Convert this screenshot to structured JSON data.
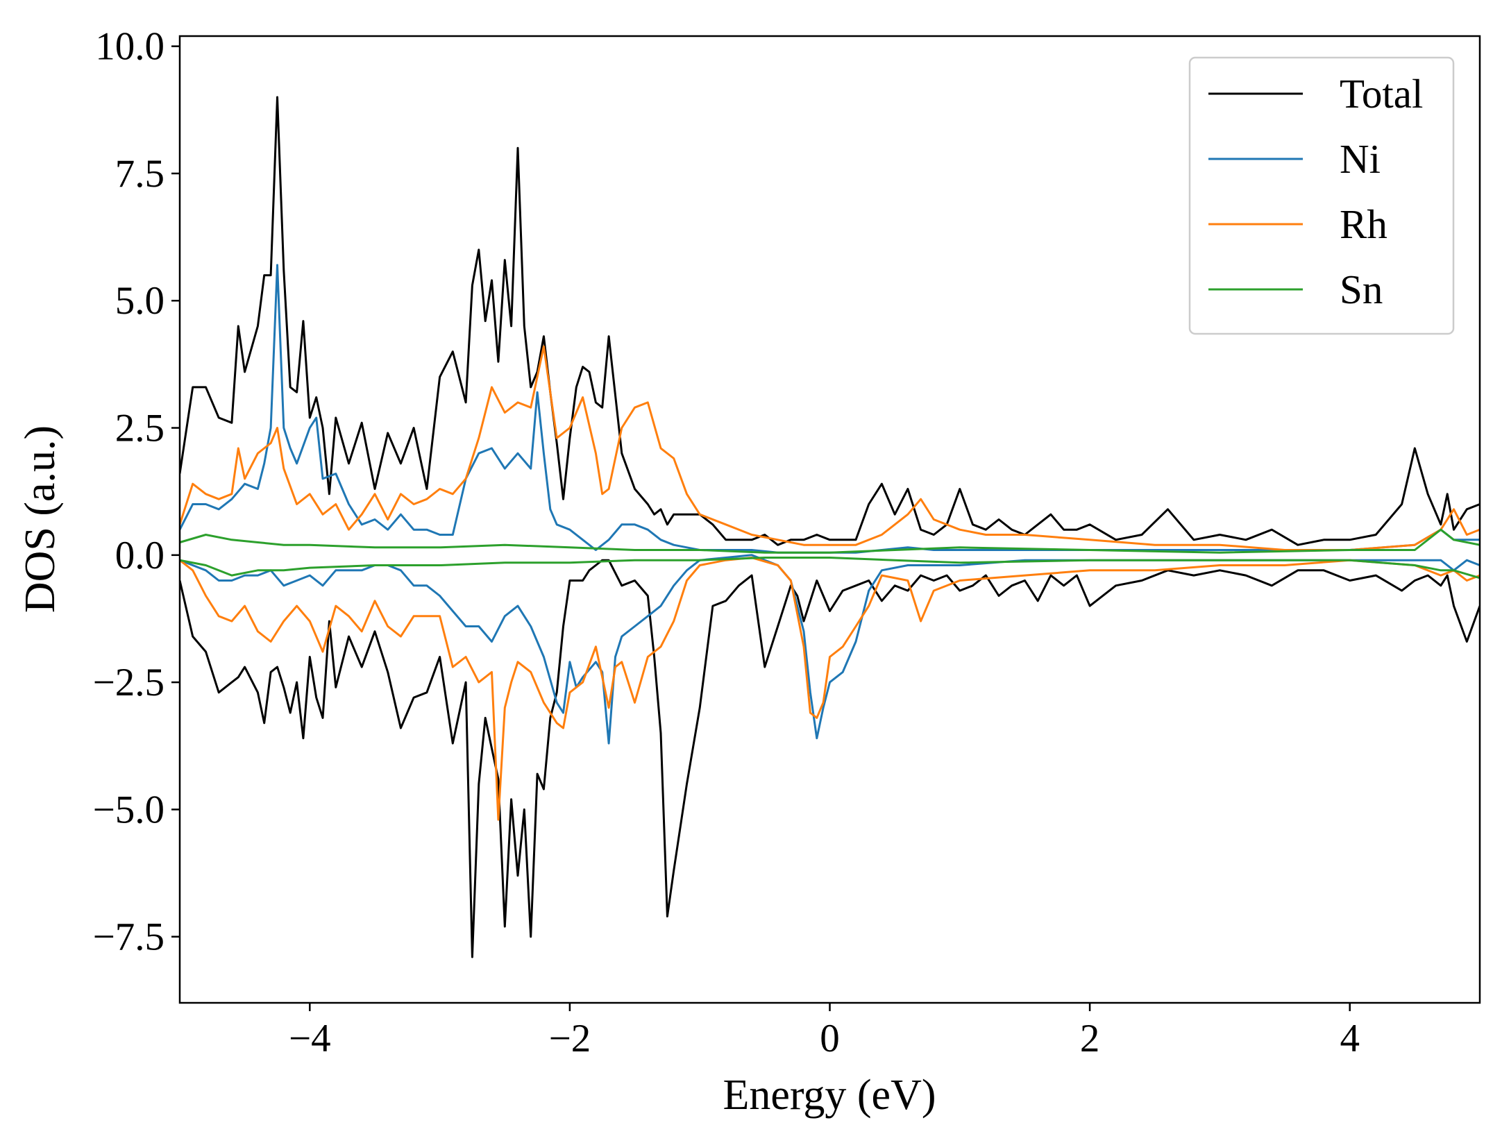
{
  "chart_data": {
    "type": "line",
    "title": "",
    "xlabel": "Energy (eV)",
    "ylabel": "DOS (a.u.)",
    "xlim": [
      -5,
      5
    ],
    "ylim": [
      -8.8,
      10.2
    ],
    "xticks": [
      -4,
      -2,
      0,
      2,
      4
    ],
    "xtick_labels": [
      "−4",
      "−2",
      "0",
      "2",
      "4"
    ],
    "yticks": [
      -7.5,
      -5.0,
      -2.5,
      0.0,
      2.5,
      5.0,
      7.5,
      10.0
    ],
    "ytick_labels": [
      "−7.5",
      "−5.0",
      "−2.5",
      "0.0",
      "2.5",
      "5.0",
      "7.5",
      "10.0"
    ],
    "grid": false,
    "legend_position": "top-right",
    "series": [
      {
        "name": "Total",
        "color": "#000000",
        "x": [
          -5.0,
          -4.9,
          -4.8,
          -4.7,
          -4.6,
          -4.55,
          -4.5,
          -4.4,
          -4.35,
          -4.3,
          -4.25,
          -4.2,
          -4.15,
          -4.1,
          -4.05,
          -4.0,
          -3.95,
          -3.9,
          -3.85,
          -3.8,
          -3.7,
          -3.6,
          -3.5,
          -3.4,
          -3.3,
          -3.2,
          -3.1,
          -3.0,
          -2.9,
          -2.8,
          -2.75,
          -2.7,
          -2.65,
          -2.6,
          -2.55,
          -2.5,
          -2.45,
          -2.4,
          -2.35,
          -2.3,
          -2.25,
          -2.2,
          -2.15,
          -2.1,
          -2.05,
          -2.0,
          -1.95,
          -1.9,
          -1.85,
          -1.8,
          -1.75,
          -1.7,
          -1.6,
          -1.5,
          -1.4,
          -1.35,
          -1.3,
          -1.25,
          -1.2,
          -1.1,
          -1.0,
          -0.9,
          -0.8,
          -0.7,
          -0.6,
          -0.5,
          -0.4,
          -0.3,
          -0.25,
          -0.2,
          -0.1,
          0.0,
          0.1,
          0.2,
          0.3,
          0.4,
          0.5,
          0.6,
          0.7,
          0.8,
          0.9,
          1.0,
          1.1,
          1.2,
          1.3,
          1.4,
          1.5,
          1.6,
          1.7,
          1.8,
          1.9,
          2.0,
          2.2,
          2.4,
          2.6,
          2.8,
          3.0,
          3.2,
          3.4,
          3.6,
          3.8,
          4.0,
          4.2,
          4.4,
          4.5,
          4.6,
          4.7,
          4.75,
          4.8,
          4.9,
          5.0
        ],
        "values": [
          1.6,
          3.3,
          3.3,
          2.7,
          2.6,
          4.5,
          3.6,
          4.5,
          5.5,
          5.5,
          9.0,
          5.6,
          3.3,
          3.2,
          4.6,
          2.7,
          3.1,
          2.5,
          1.2,
          2.7,
          1.8,
          2.6,
          1.3,
          2.4,
          1.8,
          2.5,
          1.3,
          3.5,
          4.0,
          3.0,
          5.3,
          6.0,
          4.6,
          5.4,
          3.8,
          5.8,
          4.5,
          8.0,
          4.5,
          3.3,
          3.6,
          4.3,
          3.2,
          2.2,
          1.1,
          2.3,
          3.3,
          3.7,
          3.6,
          3.0,
          2.9,
          4.3,
          2.0,
          1.3,
          1.0,
          0.8,
          0.9,
          0.6,
          0.8,
          0.8,
          0.8,
          0.6,
          0.3,
          0.3,
          0.3,
          0.4,
          0.2,
          0.3,
          0.3,
          0.3,
          0.4,
          0.3,
          0.3,
          0.3,
          1.0,
          1.4,
          0.8,
          1.3,
          0.5,
          0.4,
          0.6,
          1.3,
          0.6,
          0.5,
          0.7,
          0.5,
          0.4,
          0.6,
          0.8,
          0.5,
          0.5,
          0.6,
          0.3,
          0.4,
          0.9,
          0.3,
          0.4,
          0.3,
          0.5,
          0.2,
          0.3,
          0.3,
          0.4,
          1.0,
          2.1,
          1.2,
          0.6,
          1.2,
          0.5,
          0.9,
          1.0
        ]
      },
      {
        "name": "Total",
        "color": "#000000",
        "x": [
          -5.0,
          -4.9,
          -4.8,
          -4.7,
          -4.6,
          -4.55,
          -4.5,
          -4.4,
          -4.35,
          -4.3,
          -4.25,
          -4.2,
          -4.15,
          -4.1,
          -4.05,
          -4.0,
          -3.95,
          -3.9,
          -3.85,
          -3.8,
          -3.7,
          -3.6,
          -3.5,
          -3.4,
          -3.3,
          -3.2,
          -3.1,
          -3.0,
          -2.9,
          -2.8,
          -2.75,
          -2.7,
          -2.65,
          -2.6,
          -2.55,
          -2.5,
          -2.45,
          -2.4,
          -2.35,
          -2.3,
          -2.25,
          -2.2,
          -2.15,
          -2.1,
          -2.05,
          -2.0,
          -1.95,
          -1.9,
          -1.85,
          -1.8,
          -1.75,
          -1.7,
          -1.6,
          -1.5,
          -1.4,
          -1.35,
          -1.3,
          -1.25,
          -1.2,
          -1.1,
          -1.0,
          -0.9,
          -0.8,
          -0.7,
          -0.6,
          -0.5,
          -0.4,
          -0.3,
          -0.25,
          -0.2,
          -0.1,
          0.0,
          0.1,
          0.2,
          0.3,
          0.4,
          0.5,
          0.6,
          0.7,
          0.8,
          0.9,
          1.0,
          1.1,
          1.2,
          1.3,
          1.4,
          1.5,
          1.6,
          1.7,
          1.8,
          1.9,
          2.0,
          2.2,
          2.4,
          2.6,
          2.8,
          3.0,
          3.2,
          3.4,
          3.6,
          3.8,
          4.0,
          4.2,
          4.4,
          4.5,
          4.6,
          4.7,
          4.75,
          4.8,
          4.9,
          5.0
        ],
        "values": [
          -0.5,
          -1.6,
          -1.9,
          -2.7,
          -2.5,
          -2.4,
          -2.2,
          -2.7,
          -3.3,
          -2.3,
          -2.2,
          -2.6,
          -3.1,
          -2.5,
          -3.6,
          -2.0,
          -2.8,
          -3.2,
          -1.3,
          -2.6,
          -1.6,
          -2.2,
          -1.5,
          -2.3,
          -3.4,
          -2.8,
          -2.7,
          -2.0,
          -3.7,
          -2.5,
          -7.9,
          -4.5,
          -3.2,
          -3.8,
          -4.4,
          -7.3,
          -4.8,
          -6.3,
          -5.0,
          -7.5,
          -4.3,
          -4.6,
          -3.2,
          -2.7,
          -1.4,
          -0.5,
          -0.5,
          -0.5,
          -0.3,
          -0.2,
          -0.1,
          -0.1,
          -0.6,
          -0.5,
          -0.8,
          -2.0,
          -3.5,
          -7.1,
          -6.2,
          -4.5,
          -3.0,
          -1.0,
          -0.9,
          -0.6,
          -0.4,
          -2.2,
          -1.4,
          -0.6,
          -0.8,
          -1.3,
          -0.5,
          -1.1,
          -0.7,
          -0.6,
          -0.5,
          -0.9,
          -0.6,
          -0.7,
          -0.4,
          -0.5,
          -0.4,
          -0.7,
          -0.6,
          -0.4,
          -0.8,
          -0.6,
          -0.5,
          -0.9,
          -0.4,
          -0.6,
          -0.4,
          -1.0,
          -0.6,
          -0.5,
          -0.3,
          -0.4,
          -0.3,
          -0.4,
          -0.6,
          -0.3,
          -0.3,
          -0.5,
          -0.4,
          -0.7,
          -0.5,
          -0.4,
          -0.6,
          -0.4,
          -1.0,
          -1.7,
          -1.0
        ]
      },
      {
        "name": "Ni",
        "color": "#1f77b4",
        "x": [
          -5.0,
          -4.9,
          -4.8,
          -4.7,
          -4.6,
          -4.5,
          -4.4,
          -4.35,
          -4.3,
          -4.25,
          -4.2,
          -4.15,
          -4.1,
          -4.0,
          -3.95,
          -3.9,
          -3.8,
          -3.7,
          -3.6,
          -3.5,
          -3.4,
          -3.3,
          -3.2,
          -3.1,
          -3.0,
          -2.9,
          -2.8,
          -2.7,
          -2.6,
          -2.5,
          -2.4,
          -2.3,
          -2.25,
          -2.2,
          -2.15,
          -2.1,
          -2.0,
          -1.9,
          -1.8,
          -1.7,
          -1.6,
          -1.5,
          -1.4,
          -1.3,
          -1.2,
          -1.1,
          -1.0,
          -0.8,
          -0.6,
          -0.4,
          -0.2,
          0.0,
          0.2,
          0.4,
          0.6,
          0.8,
          1.0,
          1.5,
          2.0,
          2.5,
          3.0,
          3.5,
          4.0,
          4.5,
          4.7,
          4.8,
          4.9,
          5.0
        ],
        "values": [
          0.5,
          1.0,
          1.0,
          0.9,
          1.1,
          1.4,
          1.3,
          1.8,
          2.5,
          5.7,
          2.5,
          2.1,
          1.8,
          2.5,
          2.7,
          1.5,
          1.6,
          1.0,
          0.6,
          0.7,
          0.5,
          0.8,
          0.5,
          0.5,
          0.4,
          0.4,
          1.5,
          2.0,
          2.1,
          1.7,
          2.0,
          1.7,
          3.2,
          2.0,
          0.9,
          0.6,
          0.5,
          0.3,
          0.1,
          0.3,
          0.6,
          0.6,
          0.5,
          0.3,
          0.2,
          0.15,
          0.1,
          0.1,
          0.1,
          0.05,
          0.05,
          0.05,
          0.05,
          0.1,
          0.15,
          0.1,
          0.1,
          0.1,
          0.1,
          0.1,
          0.1,
          0.1,
          0.1,
          0.2,
          0.5,
          0.3,
          0.3,
          0.3
        ]
      },
      {
        "name": "Ni",
        "color": "#1f77b4",
        "x": [
          -5.0,
          -4.9,
          -4.8,
          -4.7,
          -4.6,
          -4.5,
          -4.4,
          -4.3,
          -4.2,
          -4.1,
          -4.0,
          -3.9,
          -3.8,
          -3.7,
          -3.6,
          -3.5,
          -3.4,
          -3.3,
          -3.2,
          -3.1,
          -3.0,
          -2.9,
          -2.8,
          -2.7,
          -2.6,
          -2.5,
          -2.4,
          -2.3,
          -2.2,
          -2.1,
          -2.05,
          -2.0,
          -1.95,
          -1.9,
          -1.8,
          -1.75,
          -1.7,
          -1.65,
          -1.6,
          -1.5,
          -1.4,
          -1.3,
          -1.2,
          -1.1,
          -1.0,
          -0.8,
          -0.6,
          -0.4,
          -0.3,
          -0.2,
          -0.15,
          -0.1,
          -0.05,
          0.0,
          0.1,
          0.2,
          0.3,
          0.4,
          0.6,
          0.8,
          1.0,
          1.5,
          2.0,
          2.5,
          3.0,
          3.5,
          4.0,
          4.5,
          4.7,
          4.8,
          4.9,
          5.0
        ],
        "values": [
          -0.1,
          -0.2,
          -0.3,
          -0.5,
          -0.5,
          -0.4,
          -0.4,
          -0.3,
          -0.6,
          -0.5,
          -0.4,
          -0.6,
          -0.3,
          -0.3,
          -0.3,
          -0.2,
          -0.2,
          -0.3,
          -0.6,
          -0.6,
          -0.8,
          -1.1,
          -1.4,
          -1.4,
          -1.7,
          -1.2,
          -1.0,
          -1.4,
          -2.0,
          -2.9,
          -3.1,
          -2.1,
          -2.6,
          -2.4,
          -2.1,
          -2.3,
          -3.7,
          -2.0,
          -1.6,
          -1.4,
          -1.2,
          -1.0,
          -0.6,
          -0.3,
          -0.1,
          -0.05,
          0.0,
          -0.2,
          -0.5,
          -1.5,
          -2.7,
          -3.6,
          -3.0,
          -2.5,
          -2.3,
          -1.7,
          -0.7,
          -0.3,
          -0.2,
          -0.2,
          -0.2,
          -0.1,
          -0.1,
          -0.1,
          -0.1,
          -0.1,
          -0.1,
          -0.1,
          -0.1,
          -0.3,
          -0.1,
          -0.2
        ]
      },
      {
        "name": "Rh",
        "color": "#ff7f0e",
        "x": [
          -5.0,
          -4.9,
          -4.8,
          -4.7,
          -4.6,
          -4.55,
          -4.5,
          -4.4,
          -4.3,
          -4.25,
          -4.2,
          -4.1,
          -4.0,
          -3.9,
          -3.8,
          -3.7,
          -3.6,
          -3.5,
          -3.4,
          -3.3,
          -3.2,
          -3.1,
          -3.0,
          -2.9,
          -2.8,
          -2.7,
          -2.6,
          -2.5,
          -2.4,
          -2.3,
          -2.2,
          -2.1,
          -2.0,
          -1.9,
          -1.8,
          -1.75,
          -1.7,
          -1.6,
          -1.5,
          -1.4,
          -1.3,
          -1.2,
          -1.1,
          -1.0,
          -0.8,
          -0.6,
          -0.4,
          -0.2,
          0.0,
          0.2,
          0.4,
          0.6,
          0.7,
          0.8,
          1.0,
          1.2,
          1.5,
          2.0,
          2.5,
          3.0,
          3.5,
          4.0,
          4.5,
          4.7,
          4.8,
          4.9,
          5.0
        ],
        "values": [
          0.6,
          1.4,
          1.2,
          1.1,
          1.2,
          2.1,
          1.5,
          2.0,
          2.2,
          2.5,
          1.7,
          1.0,
          1.2,
          0.8,
          1.0,
          0.5,
          0.8,
          1.2,
          0.7,
          1.2,
          1.0,
          1.1,
          1.3,
          1.2,
          1.5,
          2.3,
          3.3,
          2.8,
          3.0,
          2.9,
          4.1,
          2.3,
          2.5,
          3.1,
          2.0,
          1.2,
          1.3,
          2.5,
          2.9,
          3.0,
          2.1,
          1.9,
          1.2,
          0.8,
          0.6,
          0.4,
          0.3,
          0.2,
          0.2,
          0.2,
          0.4,
          0.8,
          1.1,
          0.7,
          0.5,
          0.4,
          0.4,
          0.3,
          0.2,
          0.2,
          0.1,
          0.1,
          0.2,
          0.5,
          0.9,
          0.4,
          0.5
        ]
      },
      {
        "name": "Rh",
        "color": "#ff7f0e",
        "x": [
          -5.0,
          -4.9,
          -4.8,
          -4.7,
          -4.6,
          -4.5,
          -4.4,
          -4.3,
          -4.2,
          -4.1,
          -4.0,
          -3.9,
          -3.8,
          -3.7,
          -3.6,
          -3.5,
          -3.4,
          -3.3,
          -3.2,
          -3.1,
          -3.0,
          -2.9,
          -2.8,
          -2.7,
          -2.6,
          -2.55,
          -2.5,
          -2.45,
          -2.4,
          -2.3,
          -2.2,
          -2.1,
          -2.05,
          -2.0,
          -1.9,
          -1.8,
          -1.7,
          -1.65,
          -1.6,
          -1.5,
          -1.4,
          -1.3,
          -1.2,
          -1.1,
          -1.0,
          -0.8,
          -0.6,
          -0.4,
          -0.3,
          -0.2,
          -0.15,
          -0.1,
          -0.05,
          0.0,
          0.1,
          0.2,
          0.3,
          0.4,
          0.6,
          0.7,
          0.8,
          1.0,
          1.5,
          2.0,
          2.5,
          3.0,
          3.5,
          4.0,
          4.5,
          4.7,
          4.8,
          4.9,
          5.0
        ],
        "values": [
          -0.1,
          -0.3,
          -0.8,
          -1.2,
          -1.3,
          -1.0,
          -1.5,
          -1.7,
          -1.3,
          -1.0,
          -1.3,
          -1.9,
          -1.0,
          -1.2,
          -1.5,
          -0.9,
          -1.4,
          -1.6,
          -1.2,
          -1.2,
          -1.2,
          -2.2,
          -2.0,
          -2.5,
          -2.3,
          -5.2,
          -3.0,
          -2.5,
          -2.1,
          -2.3,
          -2.9,
          -3.3,
          -3.4,
          -2.7,
          -2.5,
          -1.8,
          -3.0,
          -2.2,
          -2.1,
          -2.9,
          -2.0,
          -1.8,
          -1.3,
          -0.5,
          -0.2,
          -0.1,
          -0.05,
          -0.2,
          -0.5,
          -1.8,
          -3.1,
          -3.2,
          -2.9,
          -2.0,
          -1.8,
          -1.4,
          -1.0,
          -0.4,
          -0.5,
          -1.3,
          -0.7,
          -0.5,
          -0.4,
          -0.3,
          -0.3,
          -0.2,
          -0.2,
          -0.1,
          -0.2,
          -0.4,
          -0.3,
          -0.5,
          -0.4
        ]
      },
      {
        "name": "Sn",
        "color": "#2ca02c",
        "x": [
          -5.0,
          -4.8,
          -4.6,
          -4.4,
          -4.2,
          -4.0,
          -3.5,
          -3.0,
          -2.5,
          -2.0,
          -1.5,
          -1.0,
          -0.5,
          0.0,
          0.5,
          1.0,
          2.0,
          3.0,
          4.0,
          4.5,
          4.7,
          4.8,
          5.0
        ],
        "values": [
          0.25,
          0.4,
          0.3,
          0.25,
          0.2,
          0.2,
          0.15,
          0.15,
          0.2,
          0.15,
          0.1,
          0.1,
          0.05,
          0.05,
          0.1,
          0.15,
          0.1,
          0.05,
          0.1,
          0.1,
          0.5,
          0.3,
          0.2
        ]
      },
      {
        "name": "Sn",
        "color": "#2ca02c",
        "x": [
          -5.0,
          -4.8,
          -4.6,
          -4.4,
          -4.2,
          -4.0,
          -3.5,
          -3.0,
          -2.5,
          -2.0,
          -1.5,
          -1.0,
          -0.5,
          0.0,
          0.5,
          1.0,
          2.0,
          3.0,
          4.0,
          4.5,
          4.7,
          4.8,
          5.0
        ],
        "values": [
          -0.1,
          -0.2,
          -0.4,
          -0.3,
          -0.3,
          -0.25,
          -0.2,
          -0.2,
          -0.15,
          -0.15,
          -0.1,
          -0.1,
          -0.05,
          -0.05,
          -0.1,
          -0.15,
          -0.1,
          -0.1,
          -0.1,
          -0.2,
          -0.3,
          -0.3,
          -0.45
        ]
      }
    ]
  }
}
